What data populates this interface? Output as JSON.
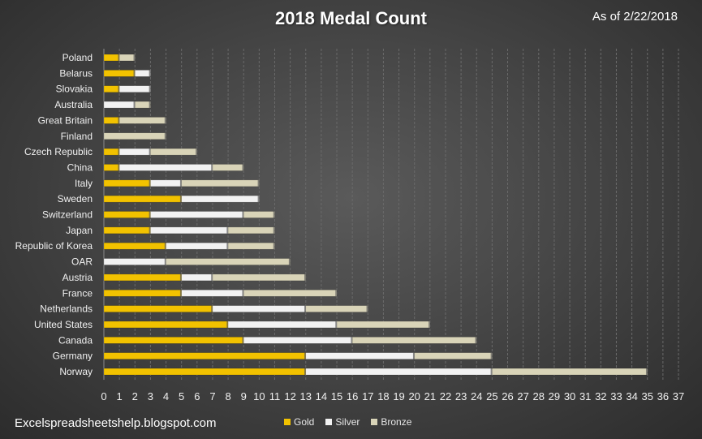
{
  "header": {
    "title": "2018 Medal Count",
    "as_of": "As of 2/22/2018"
  },
  "footer": {
    "source": "Excelspreadsheetshelp.blogspot.com"
  },
  "colors": {
    "gold": "#f2c200",
    "silver": "#f2f2f2",
    "bronze": "#d9d4b8",
    "grid": "#6a6a6a"
  },
  "chart_data": {
    "type": "bar",
    "orientation": "horizontal",
    "stacked": true,
    "title": "2018 Medal Count",
    "xlabel": "",
    "ylabel": "",
    "xlim": [
      0,
      37
    ],
    "x_ticks": [
      0,
      1,
      2,
      3,
      4,
      5,
      6,
      7,
      8,
      9,
      10,
      11,
      12,
      13,
      14,
      15,
      16,
      17,
      18,
      19,
      20,
      21,
      22,
      23,
      24,
      25,
      26,
      27,
      28,
      29,
      30,
      31,
      32,
      33,
      34,
      35,
      36,
      37
    ],
    "grid": true,
    "legend_position": "bottom",
    "categories": [
      "Poland",
      "Belarus",
      "Slovakia",
      "Australia",
      "Great Britain",
      "Finland",
      "Czech Republic",
      "China",
      "Italy",
      "Sweden",
      "Switzerland",
      "Japan",
      "Republic of Korea",
      "OAR",
      "Austria",
      "France",
      "Netherlands",
      "United States",
      "Canada",
      "Germany",
      "Norway"
    ],
    "series": [
      {
        "name": "Gold",
        "values": [
          1,
          2,
          1,
          0,
          1,
          0,
          1,
          1,
          3,
          5,
          3,
          3,
          4,
          0,
          5,
          5,
          7,
          8,
          9,
          13,
          13
        ]
      },
      {
        "name": "Silver",
        "values": [
          0,
          1,
          2,
          2,
          0,
          0,
          2,
          6,
          2,
          5,
          6,
          5,
          4,
          4,
          2,
          4,
          6,
          7,
          7,
          7,
          12
        ]
      },
      {
        "name": "Bronze",
        "values": [
          1,
          0,
          0,
          1,
          3,
          4,
          3,
          2,
          5,
          0,
          2,
          3,
          3,
          8,
          6,
          6,
          4,
          6,
          8,
          5,
          10
        ]
      }
    ]
  }
}
